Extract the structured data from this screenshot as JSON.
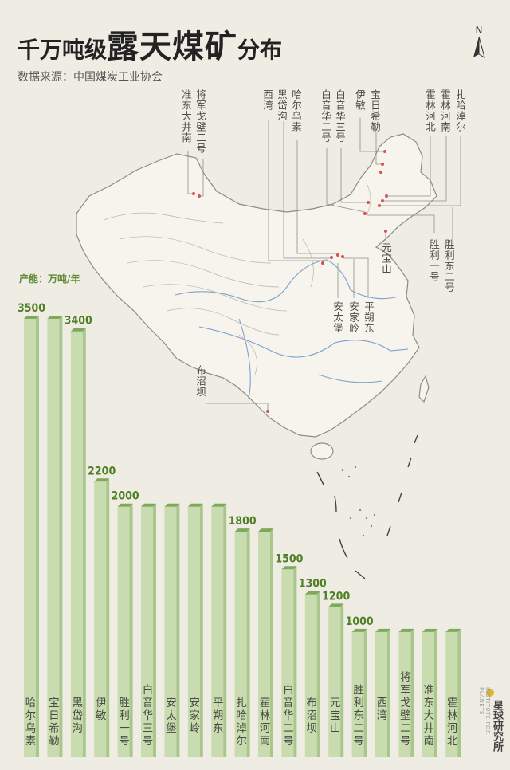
{
  "header": {
    "title_prefix": "千万吨级",
    "title_main": "露天煤矿",
    "title_suffix": "分布",
    "source": "数据来源：中国煤炭工业协会",
    "north": "N"
  },
  "map_labels": [
    {
      "text": "准东大井南"
    },
    {
      "text": "将军戈壁二号"
    },
    {
      "text": "西湾"
    },
    {
      "text": "黑岱沟"
    },
    {
      "text": "哈尔乌素"
    },
    {
      "text": "白音华二号"
    },
    {
      "text": "白音华三号"
    },
    {
      "text": "伊敏"
    },
    {
      "text": "宝日希勒"
    },
    {
      "text": "霍林河北"
    },
    {
      "text": "霍林河南"
    },
    {
      "text": "扎哈淖尔"
    },
    {
      "text": "元宝山"
    },
    {
      "text": "胜利一号"
    },
    {
      "text": "胜利东二号"
    },
    {
      "text": "安太堡"
    },
    {
      "text": "安家岭"
    },
    {
      "text": "平朔东"
    },
    {
      "text": "布沼坝"
    }
  ],
  "chart_data": {
    "type": "bar",
    "title": "",
    "ylabel": "产能：万吨/年",
    "categories": [
      "哈尔乌素",
      "宝日希勒",
      "黑岱沟",
      "伊敏",
      "胜利一号",
      "白音华三号",
      "安太堡",
      "安家岭",
      "平朔东",
      "扎哈淖尔",
      "霍林河南",
      "白音华二号",
      "布沼坝",
      "元宝山",
      "胜利东二号",
      "西湾",
      "将军戈壁二号",
      "准东大井南",
      "霍林河北"
    ],
    "values": [
      3500,
      3500,
      3400,
      2200,
      2000,
      2000,
      2000,
      2000,
      2000,
      1800,
      1800,
      1500,
      1300,
      1200,
      1000,
      1000,
      1000,
      1000,
      1000
    ],
    "value_labels": [
      "3500",
      "",
      "3400",
      "2200",
      "2000",
      "",
      "",
      "",
      "",
      "1800",
      "",
      "1500",
      "1300",
      "1200",
      "1000",
      "",
      "",
      "",
      ""
    ],
    "ylim": [
      0,
      3500
    ],
    "bar_color": "#c8dcb0",
    "label_color": "#4f7f26",
    "grid": false
  },
  "branding": {
    "name": "星球研究所",
    "english": "INSTITUTE FOR PLANETS"
  }
}
